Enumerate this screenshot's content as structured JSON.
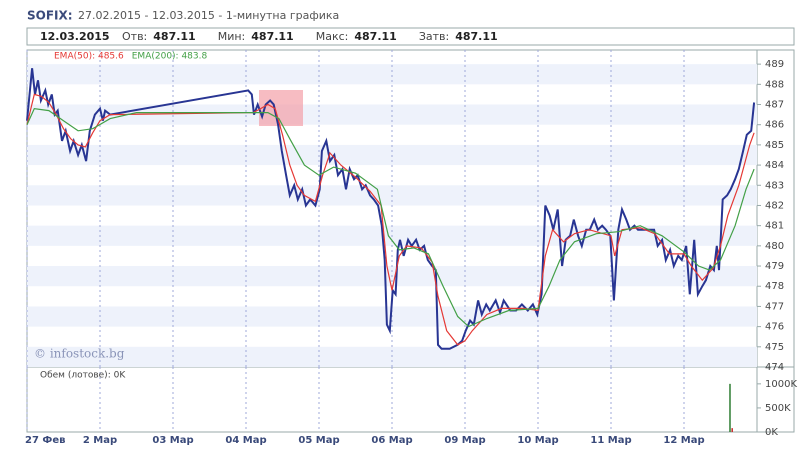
{
  "header": {
    "title": "SOFIX:",
    "subtitle": "27.02.2015 - 12.03.2015 - 1-минутна графика",
    "date": "12.03.2015",
    "items": [
      {
        "label": "Отв:",
        "value": "487.11"
      },
      {
        "label": "Мин:",
        "value": "487.11"
      },
      {
        "label": "Макс:",
        "value": "487.11"
      },
      {
        "label": "Затв:",
        "value": "487.11"
      }
    ]
  },
  "chart_data": [
    {
      "type": "line",
      "watermark": "© infostock.bg",
      "xlim": [
        0,
        10
      ],
      "ylim": [
        474,
        489.7
      ],
      "yticks": [
        474,
        475,
        476,
        477,
        478,
        479,
        480,
        481,
        482,
        483,
        484,
        485,
        486,
        487,
        488,
        489
      ],
      "xticks": [
        {
          "value": 0,
          "label": "27 Фев"
        },
        {
          "value": 1,
          "label": "2 Мар"
        },
        {
          "value": 2,
          "label": "03 Мар"
        },
        {
          "value": 3,
          "label": "04 Мар"
        },
        {
          "value": 4,
          "label": "05 Мар"
        },
        {
          "value": 5,
          "label": "06 Мар"
        },
        {
          "value": 6,
          "label": "09 Мар"
        },
        {
          "value": 7,
          "label": "10 Мар"
        },
        {
          "value": 8,
          "label": "11 Мар"
        },
        {
          "value": 9,
          "label": "12 Мар"
        }
      ],
      "series": [
        {
          "color": "#283593",
          "x": [
            0,
            0.07,
            0.11,
            0.15,
            0.19,
            0.25,
            0.29,
            0.34,
            0.38,
            0.42,
            0.48,
            0.53,
            0.59,
            0.64,
            0.7,
            0.75,
            0.81,
            0.86,
            0.93,
            1,
            1.04,
            1.07,
            1.14,
            3.03,
            3.08,
            3.11,
            3.16,
            3.22,
            3.27,
            3.33,
            3.38,
            3.44,
            3.49,
            3.55,
            3.6,
            3.66,
            3.71,
            3.77,
            3.82,
            3.88,
            3.95,
            4.01,
            4.04,
            4.1,
            4.15,
            4.21,
            4.26,
            4.32,
            4.37,
            4.42,
            4.48,
            4.53,
            4.59,
            4.64,
            4.7,
            4.75,
            4.81,
            4.86,
            4.9,
            4.93,
            4.97,
            5.01,
            5.05,
            5.08,
            5.11,
            5.16,
            5.22,
            5.27,
            5.33,
            5.38,
            5.44,
            5.49,
            5.55,
            5.6,
            5.63,
            5.68,
            5.79,
            5.9,
            5.96,
            6.01,
            6.07,
            6.12,
            6.18,
            6.23,
            6.29,
            6.34,
            6.42,
            6.48,
            6.53,
            6.62,
            6.7,
            6.78,
            6.86,
            6.93,
            6.99,
            7.05,
            7.1,
            7.16,
            7.21,
            7.27,
            7.33,
            7.38,
            7.44,
            7.49,
            7.55,
            7.6,
            7.66,
            7.71,
            7.77,
            7.82,
            7.88,
            7.93,
            7.99,
            8.04,
            8.1,
            8.15,
            8.21,
            8.26,
            8.32,
            8.37,
            8.48,
            8.59,
            8.64,
            8.7,
            8.75,
            8.81,
            8.86,
            8.92,
            8.97,
            9.03,
            9.08,
            9.14,
            9.19,
            9.25,
            9.3,
            9.36,
            9.41,
            9.45,
            9.48,
            9.51,
            9.53,
            9.59,
            9.64,
            9.7,
            9.75,
            9.81,
            9.86,
            9.92,
            9.96
          ],
          "values": [
            486.2,
            488.8,
            487.5,
            488.2,
            487.2,
            487.7,
            487,
            487.5,
            486.5,
            486.7,
            485.2,
            485.7,
            484.7,
            485.2,
            484.5,
            485,
            484.2,
            485.7,
            486.5,
            486.8,
            486.2,
            486.7,
            486.5,
            487.7,
            487.5,
            486.5,
            487,
            486.4,
            487,
            487.2,
            487,
            486,
            484.7,
            483.5,
            482.5,
            483,
            482.3,
            482.8,
            482,
            482.3,
            482,
            482.8,
            484.7,
            485.2,
            484.2,
            484.5,
            483.5,
            483.8,
            482.8,
            483.8,
            483.3,
            483.5,
            482.8,
            483,
            482.5,
            482.3,
            482,
            481,
            479.3,
            476.1,
            475.8,
            477.8,
            477.6,
            479.8,
            480.3,
            479.5,
            480.3,
            480,
            480.3,
            479.8,
            480,
            479.3,
            479,
            478.8,
            475.1,
            474.9,
            474.9,
            475.1,
            475.3,
            475.8,
            476.3,
            476.1,
            477.3,
            476.6,
            477.1,
            476.8,
            477.3,
            476.7,
            477.3,
            476.8,
            476.8,
            477.1,
            476.8,
            477.1,
            476.6,
            477.6,
            482,
            481.5,
            480.8,
            481.8,
            479,
            480.3,
            480.5,
            481.3,
            480.5,
            480,
            480.8,
            480.8,
            481.3,
            480.8,
            481,
            480.8,
            480.5,
            477.3,
            480.8,
            481.8,
            481.3,
            480.8,
            481,
            480.8,
            480.8,
            480.8,
            480,
            480.3,
            479.3,
            479.8,
            479,
            479.5,
            479.3,
            480,
            477.6,
            480.3,
            477.6,
            478,
            478.3,
            479,
            478.8,
            480,
            478.8,
            480.8,
            482.3,
            482.5,
            482.8,
            483.3,
            483.8,
            484.7,
            485.5,
            485.7,
            487.1
          ]
        },
        {
          "name": "EMA(50): 485.6",
          "color": "#e53935",
          "x": [
            0,
            0.1,
            0.2,
            0.3,
            0.4,
            0.5,
            0.6,
            0.7,
            0.8,
            0.9,
            1,
            1.14,
            3.03,
            3.1,
            3.2,
            3.3,
            3.4,
            3.5,
            3.6,
            3.7,
            3.8,
            3.95,
            4.05,
            4.15,
            4.3,
            4.5,
            4.7,
            4.85,
            4.93,
            5,
            5.1,
            5.2,
            5.4,
            5.55,
            5.63,
            5.75,
            5.9,
            6,
            6.1,
            6.3,
            6.5,
            6.8,
            7,
            7.1,
            7.2,
            7.35,
            7.5,
            7.7,
            8,
            8.05,
            8.15,
            8.4,
            8.6,
            8.8,
            9,
            9.1,
            9.25,
            9.4,
            9.5,
            9.6,
            9.75,
            9.9,
            9.96
          ],
          "values": [
            486,
            487.5,
            487.4,
            487.1,
            486.5,
            485.8,
            485.3,
            485,
            484.9,
            485.6,
            486.2,
            486.5,
            486.6,
            486.6,
            486.8,
            487,
            486.8,
            485.5,
            484,
            483,
            482.5,
            482.2,
            483.5,
            484.6,
            484,
            483.4,
            482.7,
            482,
            479,
            477.8,
            479.5,
            480,
            479.9,
            479.2,
            477.5,
            475.8,
            475.1,
            475.3,
            475.8,
            476.6,
            476.9,
            476.9,
            476.8,
            479.5,
            480.8,
            480.2,
            480.6,
            480.8,
            480.5,
            479.5,
            480.8,
            480.9,
            480.6,
            479.6,
            479.6,
            479,
            478.3,
            478.9,
            480,
            481.5,
            483,
            485,
            485.6
          ]
        },
        {
          "name": "EMA(200): 483.8",
          "color": "#43a047",
          "x": [
            0,
            0.1,
            0.3,
            0.5,
            0.7,
            0.9,
            1.14,
            1.5,
            3.03,
            3.3,
            3.45,
            3.6,
            3.8,
            4,
            4.2,
            4.5,
            4.8,
            4.95,
            5.1,
            5.3,
            5.5,
            5.7,
            5.9,
            6.05,
            6.3,
            6.6,
            7,
            7.15,
            7.3,
            7.5,
            7.8,
            8.1,
            8.4,
            8.7,
            9,
            9.2,
            9.35,
            9.5,
            9.7,
            9.85,
            9.96
          ],
          "values": [
            486,
            486.8,
            486.7,
            486.2,
            485.7,
            485.8,
            486.3,
            486.6,
            486.6,
            486.6,
            486.3,
            485.3,
            484,
            483.5,
            483.9,
            483.6,
            482.8,
            480.5,
            479.8,
            479.9,
            479.6,
            478,
            476.5,
            476,
            476.4,
            476.8,
            476.9,
            478,
            479.3,
            480.2,
            480.6,
            480.7,
            481,
            480.5,
            479.7,
            479,
            478.8,
            479.3,
            481,
            482.8,
            483.8
          ]
        }
      ]
    },
    {
      "type": "volume",
      "label": "Обем (лотове): 0K",
      "xlim": [
        0,
        10
      ],
      "ylim": [
        0,
        1350000
      ],
      "yticks": [
        {
          "value": 0,
          "label": "0K"
        },
        {
          "value": 500000,
          "label": "500K"
        },
        {
          "value": 1000000,
          "label": "1000K"
        }
      ],
      "x": [
        9.63,
        9.66
      ],
      "values": [
        1000000,
        80000
      ],
      "colors": [
        "#2e7d32",
        "#c62828"
      ]
    }
  ]
}
